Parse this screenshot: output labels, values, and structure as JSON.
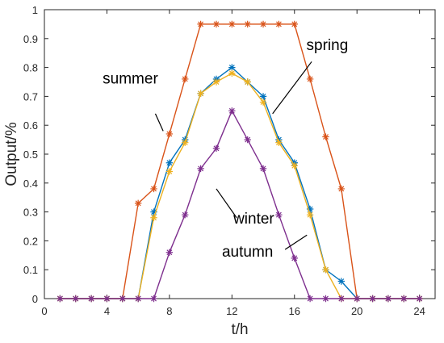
{
  "chart_data": {
    "type": "line",
    "title": "",
    "xlabel": "t/h",
    "ylabel": "Output/%",
    "xlim": [
      0,
      25
    ],
    "ylim": [
      0,
      1
    ],
    "xticks": [
      0,
      4,
      8,
      12,
      16,
      20,
      24
    ],
    "xtick_labels": [
      "0",
      "4",
      "8",
      "12",
      "16",
      "20",
      "24"
    ],
    "yticks": [
      0,
      0.1,
      0.2,
      0.3,
      0.4,
      0.5,
      0.6,
      0.7,
      0.8,
      0.9,
      1
    ],
    "ytick_labels": [
      "0",
      "0.1",
      "0.2",
      "0.3",
      "0.4",
      "0.5",
      "0.6",
      "0.7",
      "0.8",
      "0.9",
      "1"
    ],
    "grid": false,
    "x": [
      1,
      2,
      3,
      4,
      5,
      6,
      7,
      8,
      9,
      10,
      11,
      12,
      13,
      14,
      15,
      16,
      17,
      18,
      19,
      20,
      21,
      22,
      23,
      24
    ],
    "series": [
      {
        "name": "summer",
        "color": "#d95319",
        "marker": "asterisk",
        "values": [
          0,
          0,
          0,
          0,
          0,
          0.33,
          0.38,
          0.57,
          0.76,
          0.95,
          0.95,
          0.95,
          0.95,
          0.95,
          0.95,
          0.95,
          0.76,
          0.56,
          0.38,
          0,
          0,
          0,
          0,
          0
        ]
      },
      {
        "name": "spring",
        "color": "#0072bd",
        "marker": "asterisk",
        "values": [
          0,
          0,
          0,
          0,
          0,
          0,
          0.3,
          0.47,
          0.55,
          0.71,
          0.76,
          0.8,
          0.75,
          0.7,
          0.55,
          0.47,
          0.31,
          0.1,
          0.06,
          0,
          0,
          0,
          0,
          0
        ]
      },
      {
        "name": "autumn",
        "color": "#edb120",
        "marker": "asterisk",
        "values": [
          0,
          0,
          0,
          0,
          0,
          0,
          0.28,
          0.44,
          0.54,
          0.71,
          0.75,
          0.78,
          0.75,
          0.68,
          0.54,
          0.46,
          0.29,
          0.1,
          0,
          0,
          0,
          0,
          0,
          0
        ]
      },
      {
        "name": "winter",
        "color": "#7e2f8e",
        "marker": "asterisk",
        "values": [
          0,
          0,
          0,
          0,
          0,
          0,
          0,
          0.16,
          0.29,
          0.45,
          0.52,
          0.65,
          0.55,
          0.45,
          0.29,
          0.14,
          0,
          0,
          0,
          0,
          0,
          0,
          0,
          0
        ]
      }
    ],
    "annotations": [
      {
        "text": "summer",
        "at": [
          5.5,
          0.745
        ],
        "points_to": [
          7.5,
          0.58
        ]
      },
      {
        "text": "spring",
        "at": [
          18.1,
          0.86
        ],
        "points_to": [
          14.5,
          0.63
        ]
      },
      {
        "text": "winter",
        "at": [
          13.4,
          0.26
        ],
        "points_to": [
          11.2,
          0.2
        ]
      },
      {
        "text": "autumn",
        "at": [
          13.0,
          0.145
        ],
        "points_to": [
          16.7,
          0.215
        ]
      }
    ]
  }
}
